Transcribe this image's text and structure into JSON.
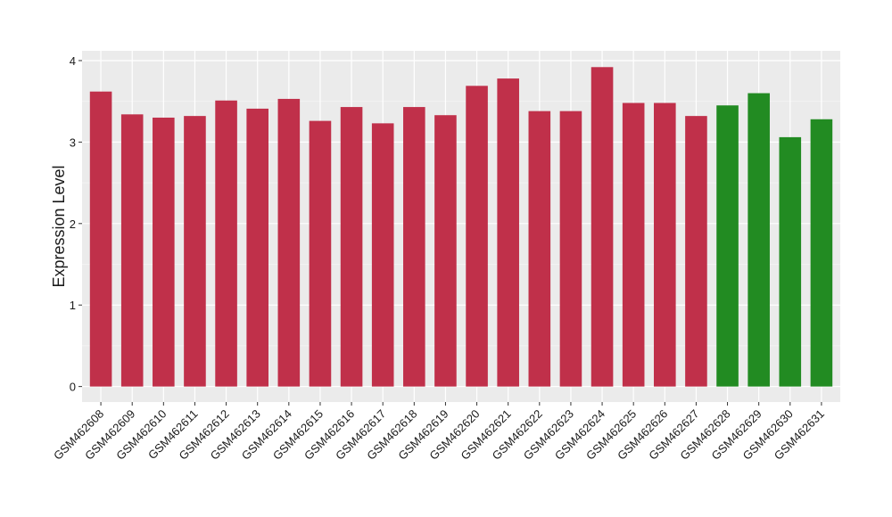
{
  "chart_data": {
    "type": "bar",
    "y_label": "Expression Level",
    "categories": [
      "GSM462608",
      "GSM462609",
      "GSM462610",
      "GSM462611",
      "GSM462612",
      "GSM462613",
      "GSM462614",
      "GSM462615",
      "GSM462616",
      "GSM462617",
      "GSM462618",
      "GSM462619",
      "GSM462620",
      "GSM462621",
      "GSM462622",
      "GSM462623",
      "GSM462624",
      "GSM462625",
      "GSM462626",
      "GSM462627",
      "GSM462628",
      "GSM462629",
      "GSM462630",
      "GSM462631"
    ],
    "values": [
      3.62,
      3.34,
      3.3,
      3.32,
      3.51,
      3.41,
      3.53,
      3.26,
      3.43,
      3.23,
      3.43,
      3.33,
      3.69,
      3.78,
      3.38,
      3.38,
      3.92,
      3.48,
      3.48,
      3.32,
      3.45,
      3.6,
      3.06,
      3.28
    ],
    "colors": [
      "#c0304a",
      "#c0304a",
      "#c0304a",
      "#c0304a",
      "#c0304a",
      "#c0304a",
      "#c0304a",
      "#c0304a",
      "#c0304a",
      "#c0304a",
      "#c0304a",
      "#c0304a",
      "#c0304a",
      "#c0304a",
      "#c0304a",
      "#c0304a",
      "#c0304a",
      "#c0304a",
      "#c0304a",
      "#c0304a",
      "#228b22",
      "#228b22",
      "#228b22",
      "#228b22"
    ],
    "ylim": [
      -0.19,
      4.12
    ],
    "yticks": [
      0,
      1,
      2,
      3,
      4
    ],
    "grid": true
  }
}
